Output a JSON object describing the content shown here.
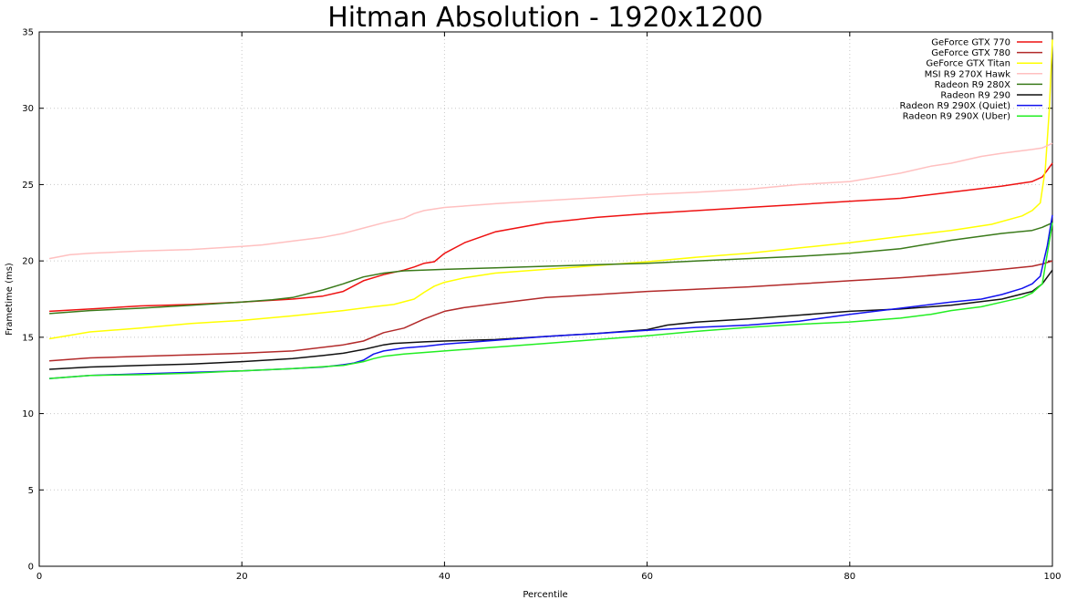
{
  "chart_data": {
    "type": "line",
    "title": "Hitman Absolution - 1920x1200",
    "xlabel": "Percentile",
    "ylabel": "Frametime (ms)",
    "xlim": [
      0,
      100
    ],
    "ylim": [
      0,
      35
    ],
    "xticks": [
      0,
      20,
      40,
      60,
      80,
      100
    ],
    "yticks": [
      0,
      5,
      10,
      15,
      20,
      25,
      30,
      35
    ],
    "grid": true,
    "legend_position": "top-right",
    "series": [
      {
        "name": "GeForce GTX 770",
        "color": "#ee1111",
        "x": [
          1,
          5,
          10,
          15,
          20,
          25,
          28,
          30,
          32,
          34,
          36,
          37,
          38,
          39,
          40,
          42,
          45,
          50,
          55,
          60,
          65,
          70,
          75,
          80,
          85,
          90,
          95,
          98,
          99,
          100
        ],
        "y": [
          16.7,
          16.85,
          17.05,
          17.15,
          17.3,
          17.5,
          17.7,
          18.0,
          18.7,
          19.1,
          19.4,
          19.6,
          19.85,
          19.95,
          20.5,
          21.2,
          21.9,
          22.5,
          22.85,
          23.1,
          23.3,
          23.5,
          23.7,
          23.9,
          24.1,
          24.5,
          24.9,
          25.2,
          25.5,
          26.4
        ]
      },
      {
        "name": "GeForce GTX 780",
        "color": "#b22a2a",
        "x": [
          1,
          5,
          10,
          15,
          20,
          25,
          30,
          32,
          34,
          36,
          37,
          38,
          40,
          42,
          45,
          50,
          55,
          60,
          65,
          70,
          75,
          80,
          85,
          90,
          95,
          98,
          99,
          100
        ],
        "y": [
          13.45,
          13.65,
          13.75,
          13.85,
          13.95,
          14.1,
          14.5,
          14.75,
          15.3,
          15.6,
          15.9,
          16.2,
          16.7,
          16.95,
          17.2,
          17.6,
          17.8,
          18.0,
          18.15,
          18.3,
          18.5,
          18.7,
          18.9,
          19.15,
          19.45,
          19.65,
          19.8,
          20.0
        ]
      },
      {
        "name": "GeForce GTX Titan",
        "color": "#ffff00",
        "x": [
          1,
          5,
          10,
          15,
          20,
          25,
          30,
          33,
          35,
          37,
          38,
          39,
          40,
          42,
          45,
          50,
          55,
          60,
          65,
          70,
          75,
          80,
          85,
          90,
          94,
          97,
          98,
          98.8,
          99.3,
          99.7,
          100
        ],
        "y": [
          14.9,
          15.35,
          15.6,
          15.9,
          16.1,
          16.4,
          16.75,
          17.0,
          17.15,
          17.5,
          17.95,
          18.35,
          18.6,
          18.9,
          19.2,
          19.45,
          19.7,
          19.95,
          20.25,
          20.5,
          20.85,
          21.2,
          21.6,
          22.0,
          22.4,
          22.95,
          23.3,
          23.8,
          26.0,
          30.0,
          34.5
        ]
      },
      {
        "name": "MSI R9 270X Hawk",
        "color": "#ffc0c0",
        "x": [
          1,
          3,
          5,
          10,
          15,
          20,
          22,
          25,
          28,
          30,
          32,
          34,
          36,
          37,
          38,
          40,
          42,
          45,
          50,
          55,
          60,
          65,
          70,
          75,
          80,
          85,
          88,
          90,
          93,
          95,
          98,
          99,
          100
        ],
        "y": [
          20.15,
          20.4,
          20.5,
          20.65,
          20.75,
          20.95,
          21.05,
          21.3,
          21.55,
          21.8,
          22.15,
          22.5,
          22.8,
          23.1,
          23.3,
          23.5,
          23.6,
          23.75,
          23.95,
          24.15,
          24.35,
          24.5,
          24.7,
          25.0,
          25.2,
          25.75,
          26.2,
          26.4,
          26.85,
          27.05,
          27.3,
          27.4,
          27.7
        ]
      },
      {
        "name": "Radeon R9 280X",
        "color": "#3a7a1a",
        "x": [
          1,
          5,
          10,
          15,
          20,
          23,
          25,
          28,
          30,
          32,
          34,
          36,
          40,
          45,
          50,
          55,
          60,
          65,
          70,
          75,
          80,
          85,
          90,
          95,
          98,
          99,
          100
        ],
        "y": [
          16.55,
          16.75,
          16.9,
          17.1,
          17.3,
          17.45,
          17.6,
          18.1,
          18.5,
          18.95,
          19.2,
          19.35,
          19.45,
          19.55,
          19.65,
          19.75,
          19.85,
          20.0,
          20.15,
          20.3,
          20.5,
          20.8,
          21.35,
          21.8,
          22.0,
          22.2,
          22.5
        ]
      },
      {
        "name": "Radeon R9 290",
        "color": "#111111",
        "x": [
          1,
          5,
          10,
          15,
          20,
          25,
          28,
          30,
          32,
          34,
          35,
          38,
          40,
          45,
          50,
          55,
          60,
          62,
          65,
          70,
          75,
          80,
          85,
          90,
          95,
          98,
          99,
          100
        ],
        "y": [
          12.9,
          13.05,
          13.15,
          13.25,
          13.4,
          13.6,
          13.8,
          13.95,
          14.2,
          14.5,
          14.6,
          14.7,
          14.75,
          14.85,
          15.05,
          15.25,
          15.5,
          15.8,
          16.0,
          16.2,
          16.45,
          16.7,
          16.85,
          17.1,
          17.5,
          18.0,
          18.5,
          19.4
        ]
      },
      {
        "name": "Radeon R9 290X (Quiet)",
        "color": "#1111ee",
        "x": [
          1,
          5,
          10,
          15,
          20,
          25,
          28,
          30,
          31,
          32,
          33,
          34,
          36,
          38,
          40,
          45,
          50,
          55,
          60,
          65,
          70,
          75,
          80,
          85,
          90,
          93,
          95,
          97,
          98,
          98.8,
          99.5,
          100
        ],
        "y": [
          12.3,
          12.5,
          12.6,
          12.7,
          12.8,
          12.95,
          13.05,
          13.2,
          13.3,
          13.5,
          13.9,
          14.1,
          14.3,
          14.4,
          14.55,
          14.8,
          15.05,
          15.25,
          15.45,
          15.65,
          15.8,
          16.05,
          16.5,
          16.9,
          17.3,
          17.5,
          17.8,
          18.2,
          18.5,
          19.0,
          21.0,
          23.0
        ]
      },
      {
        "name": "Radeon R9 290X (Uber)",
        "color": "#22ee22",
        "x": [
          1,
          5,
          10,
          15,
          20,
          25,
          30,
          32,
          33,
          34,
          36,
          40,
          45,
          50,
          55,
          60,
          65,
          70,
          75,
          80,
          85,
          88,
          90,
          93,
          95,
          97,
          98,
          99,
          100
        ],
        "y": [
          12.3,
          12.5,
          12.55,
          12.65,
          12.8,
          12.95,
          13.15,
          13.4,
          13.6,
          13.75,
          13.9,
          14.1,
          14.35,
          14.6,
          14.85,
          15.1,
          15.4,
          15.65,
          15.85,
          16.0,
          16.25,
          16.5,
          16.75,
          17.0,
          17.3,
          17.6,
          17.9,
          18.5,
          22.5
        ]
      }
    ]
  }
}
